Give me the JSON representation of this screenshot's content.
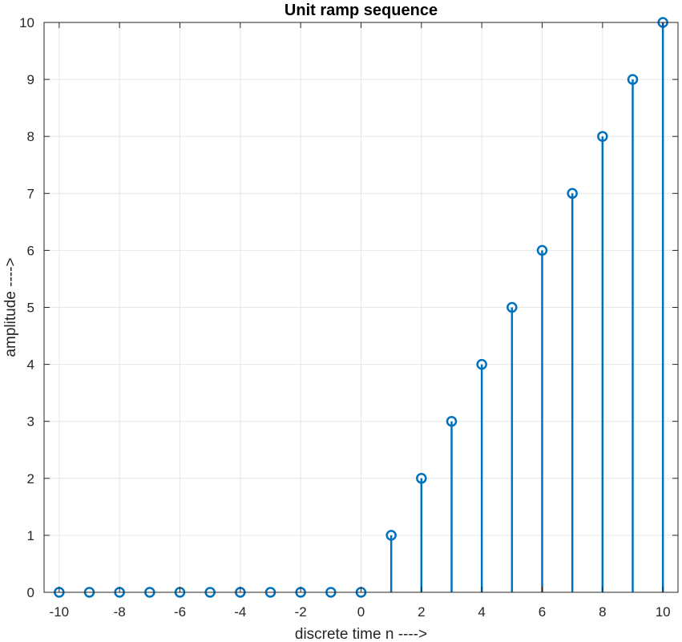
{
  "chart_data": {
    "type": "stem",
    "title": "Unit ramp sequence",
    "xlabel": "discrete time n ---->",
    "ylabel": "amplitude ---->",
    "x": [
      -10,
      -9,
      -8,
      -7,
      -6,
      -5,
      -4,
      -3,
      -2,
      -1,
      0,
      1,
      2,
      3,
      4,
      5,
      6,
      7,
      8,
      9,
      10
    ],
    "y": [
      0,
      0,
      0,
      0,
      0,
      0,
      0,
      0,
      0,
      0,
      0,
      1,
      2,
      3,
      4,
      5,
      6,
      7,
      8,
      9,
      10
    ],
    "xlim": [
      -10.5,
      10.5
    ],
    "ylim": [
      0,
      10
    ],
    "xticks": [
      -10,
      -8,
      -6,
      -4,
      -2,
      0,
      2,
      4,
      6,
      8,
      10
    ],
    "yticks": [
      0,
      1,
      2,
      3,
      4,
      5,
      6,
      7,
      8,
      9,
      10
    ],
    "xtick_labels": [
      "-10",
      "-8",
      "-6",
      "-4",
      "-2",
      "0",
      "2",
      "4",
      "6",
      "8",
      "10"
    ],
    "ytick_labels": [
      "0",
      "1",
      "2",
      "3",
      "4",
      "5",
      "6",
      "7",
      "8",
      "9",
      "10"
    ],
    "grid": true,
    "marker": "circle",
    "colors": {
      "series": "#0072BD",
      "grid": "#e6e6e6",
      "axes": "#262626"
    }
  }
}
